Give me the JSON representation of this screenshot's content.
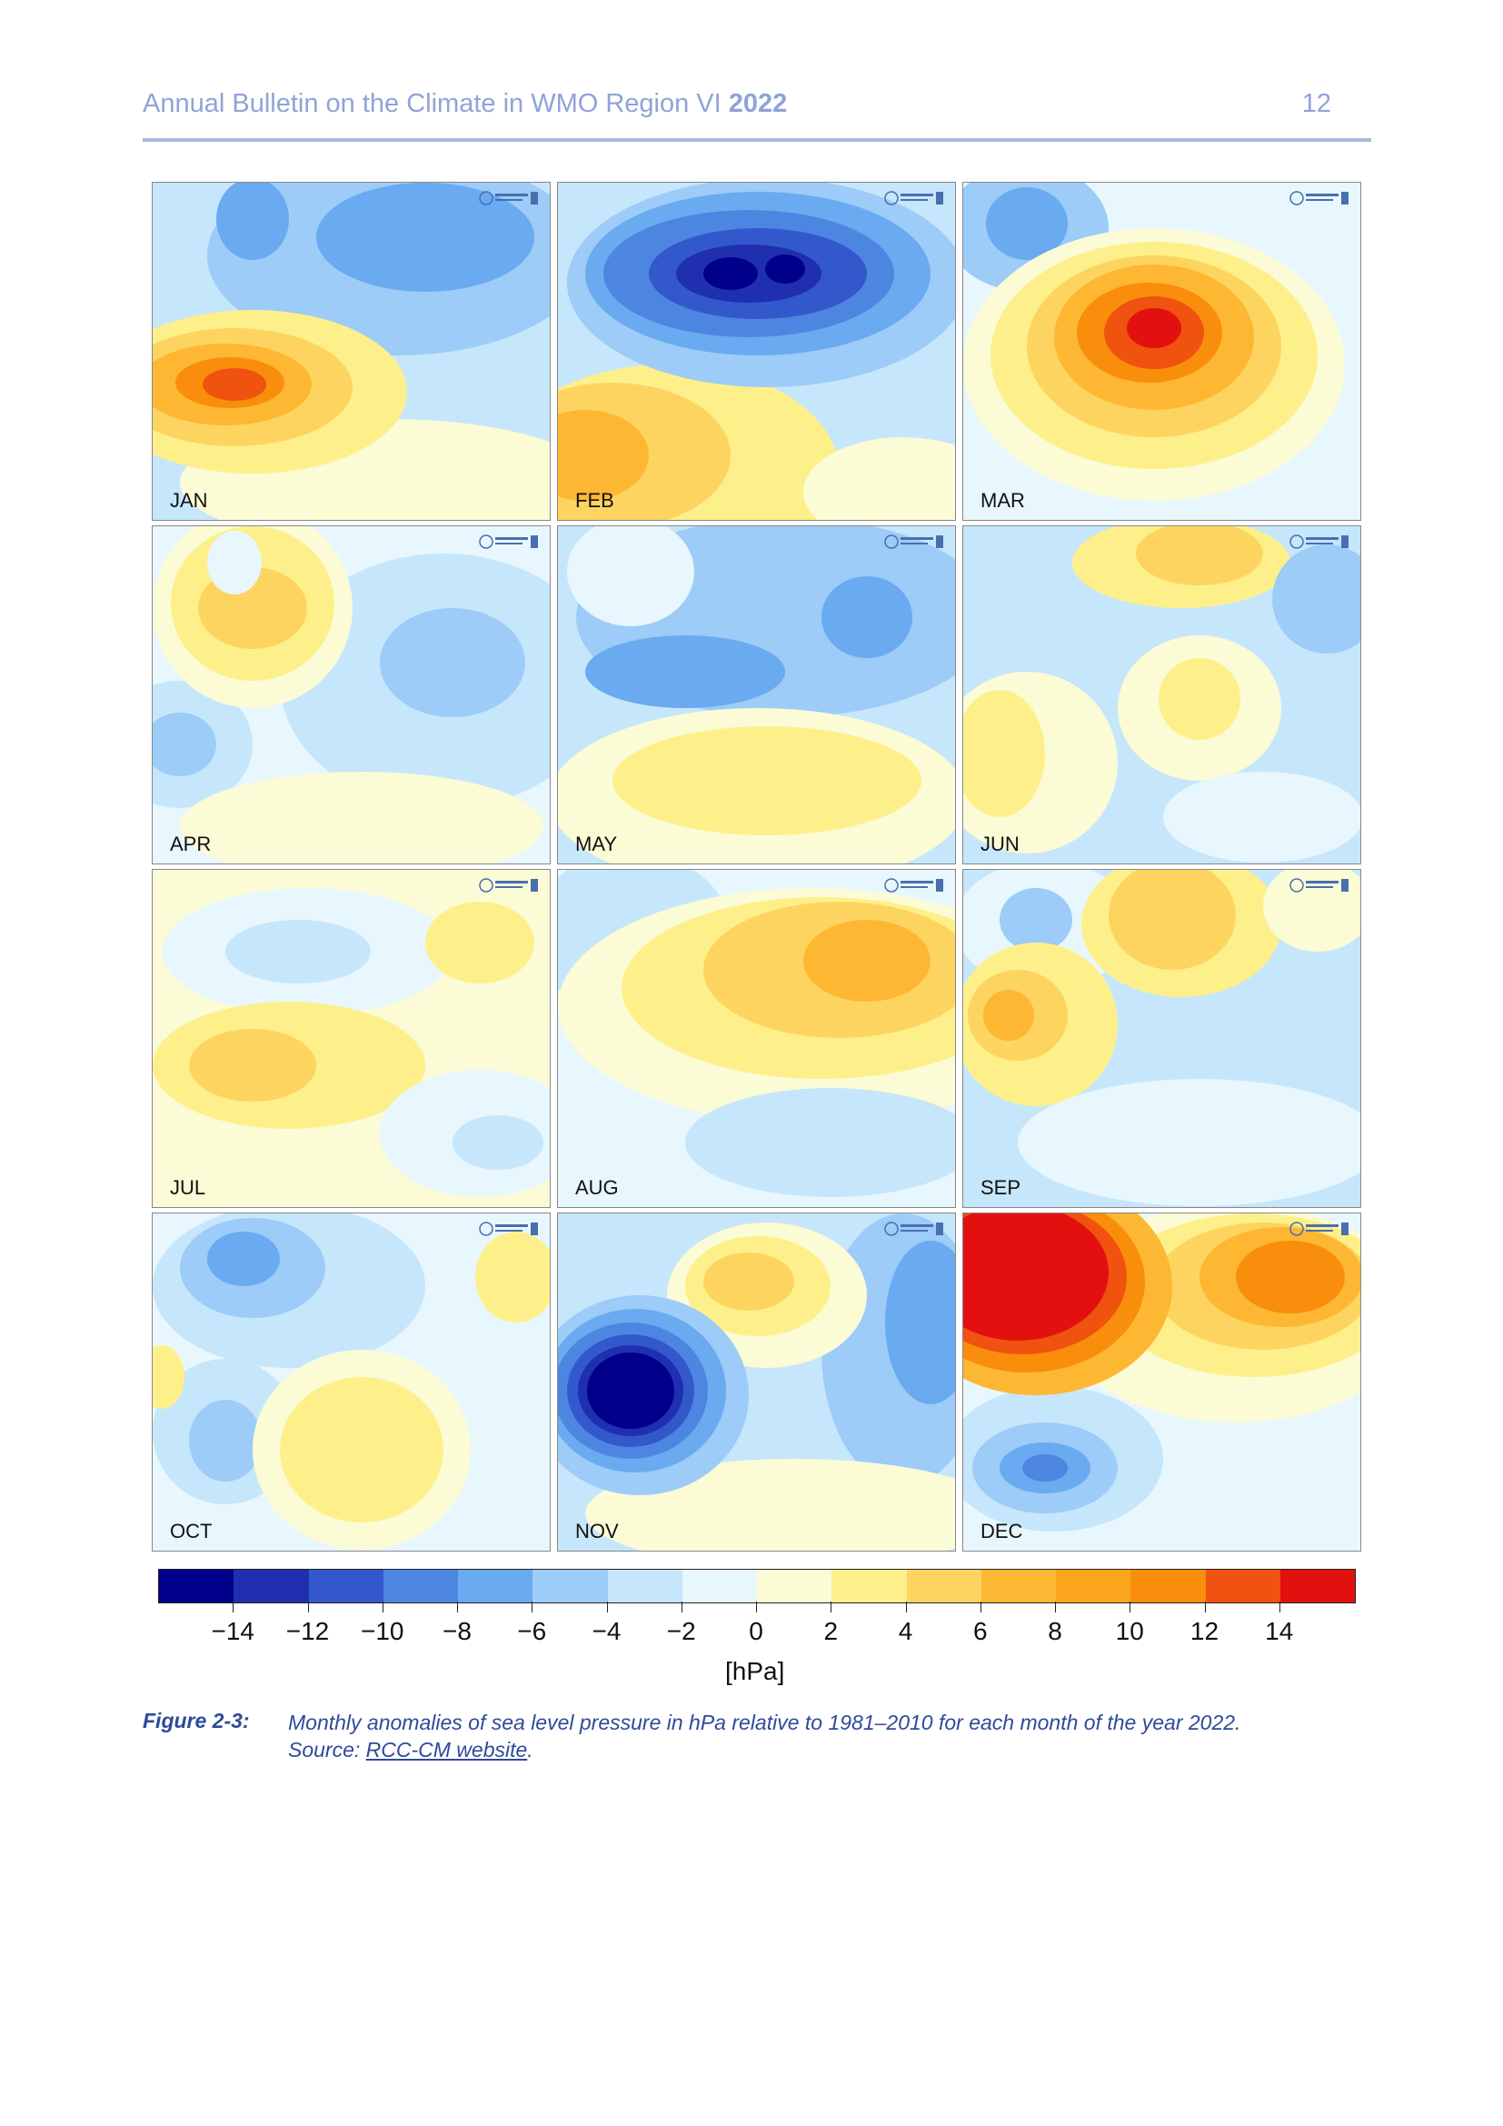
{
  "header": {
    "title": "Annual Bulletin on the Climate in WMO Region VI",
    "year": "2022",
    "page_number": "12"
  },
  "panels": [
    {
      "month": "JAN"
    },
    {
      "month": "FEB"
    },
    {
      "month": "MAR"
    },
    {
      "month": "APR"
    },
    {
      "month": "MAY"
    },
    {
      "month": "JUN"
    },
    {
      "month": "JUL"
    },
    {
      "month": "AUG"
    },
    {
      "month": "SEP"
    },
    {
      "month": "OCT"
    },
    {
      "month": "NOV"
    },
    {
      "month": "DEC"
    }
  ],
  "colorbar": {
    "colors": [
      "#00008b",
      "#1f2fb0",
      "#3358cc",
      "#4d86e0",
      "#6aaaf0",
      "#9cccf7",
      "#c6e6fb",
      "#e8f7fd",
      "#fbfbd6",
      "#fdf08a",
      "#fed460",
      "#fdb733",
      "#fba51c",
      "#f98e0c",
      "#f0520f",
      "#e31010"
    ],
    "tick_labels": [
      "−14",
      "−12",
      "−10",
      "−8",
      "−6",
      "−4",
      "−2",
      "0",
      "2",
      "4",
      "6",
      "8",
      "10",
      "12",
      "14"
    ],
    "unit": "[hPa]"
  },
  "caption": {
    "label": "Figure 2-3:",
    "text": "Monthly anomalies of sea level pressure in hPa relative to 1981–2010 for each month of the year 2022.",
    "source_prefix": "Source: ",
    "source_link": "RCC-CM website",
    "source_suffix": "."
  }
}
